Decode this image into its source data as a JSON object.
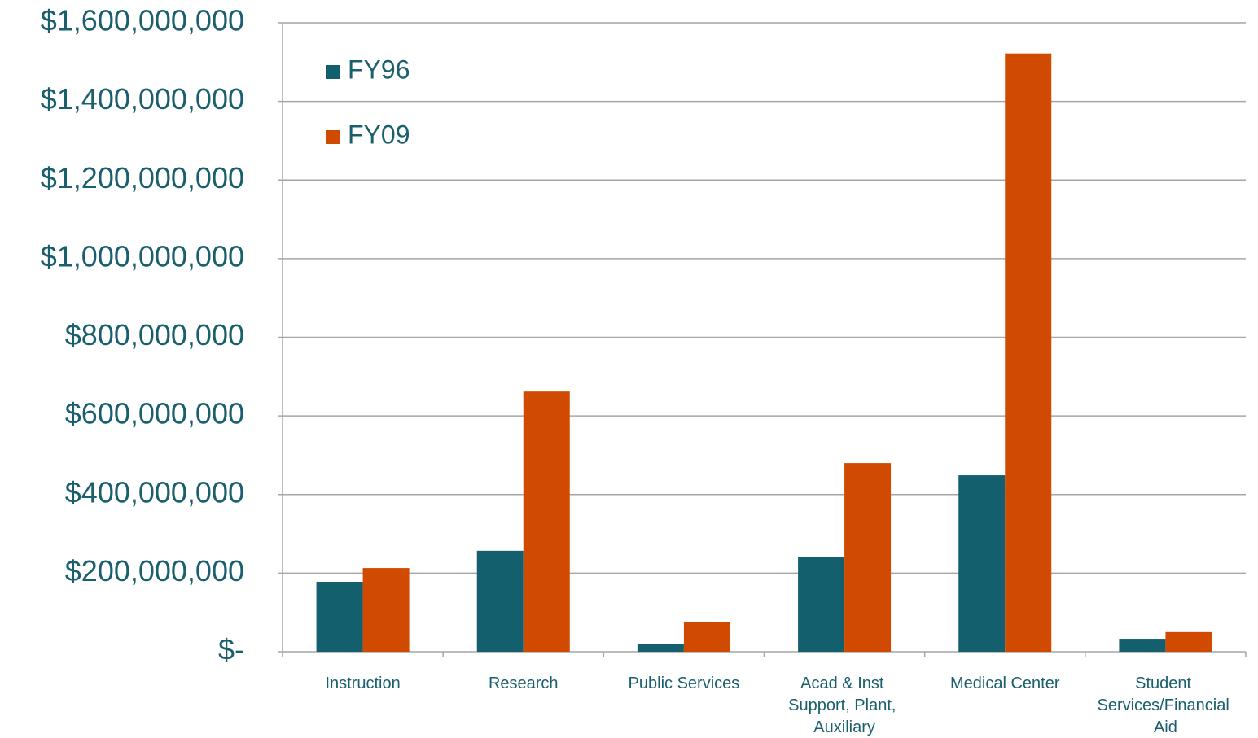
{
  "chart_data": {
    "type": "bar",
    "categories": [
      "Instruction",
      "Research",
      "Public Services",
      "Acad & Inst Support, Plant, Auxiliary",
      "Medical Center",
      "Student Services/Financial Aid"
    ],
    "series": [
      {
        "name": "FY96",
        "color": "#135f6e",
        "values": [
          178000000,
          257000000,
          19000000,
          242000000,
          449000000,
          33000000
        ]
      },
      {
        "name": "FY09",
        "color": "#d04a02",
        "values": [
          213000000,
          662000000,
          75000000,
          480000000,
          1522000000,
          50000000
        ]
      }
    ],
    "ylim": [
      0,
      1600000000
    ],
    "yticks": [
      {
        "value": 0,
        "label": "$-"
      },
      {
        "value": 200000000,
        "label": "$200,000,000"
      },
      {
        "value": 400000000,
        "label": "$400,000,000"
      },
      {
        "value": 600000000,
        "label": "$600,000,000"
      },
      {
        "value": 800000000,
        "label": "$800,000,000"
      },
      {
        "value": 1000000000,
        "label": "$1,000,000,000"
      },
      {
        "value": 1200000000,
        "label": "$1,200,000,000"
      },
      {
        "value": 1400000000,
        "label": "$1,400,000,000"
      },
      {
        "value": 1600000000,
        "label": "$1,600,000,000"
      }
    ],
    "grid": true,
    "legend": "top-left"
  }
}
